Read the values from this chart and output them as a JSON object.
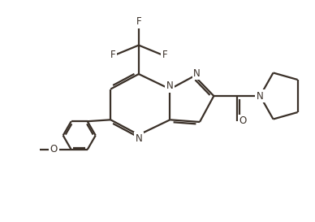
{
  "bg_color": "#ffffff",
  "line_color": "#3a3028",
  "line_width": 1.6,
  "font_size": 8.5,
  "figsize": [
    3.88,
    2.73
  ],
  "dpi": 100,
  "xlim": [
    0,
    10
  ],
  "ylim": [
    0,
    7
  ]
}
